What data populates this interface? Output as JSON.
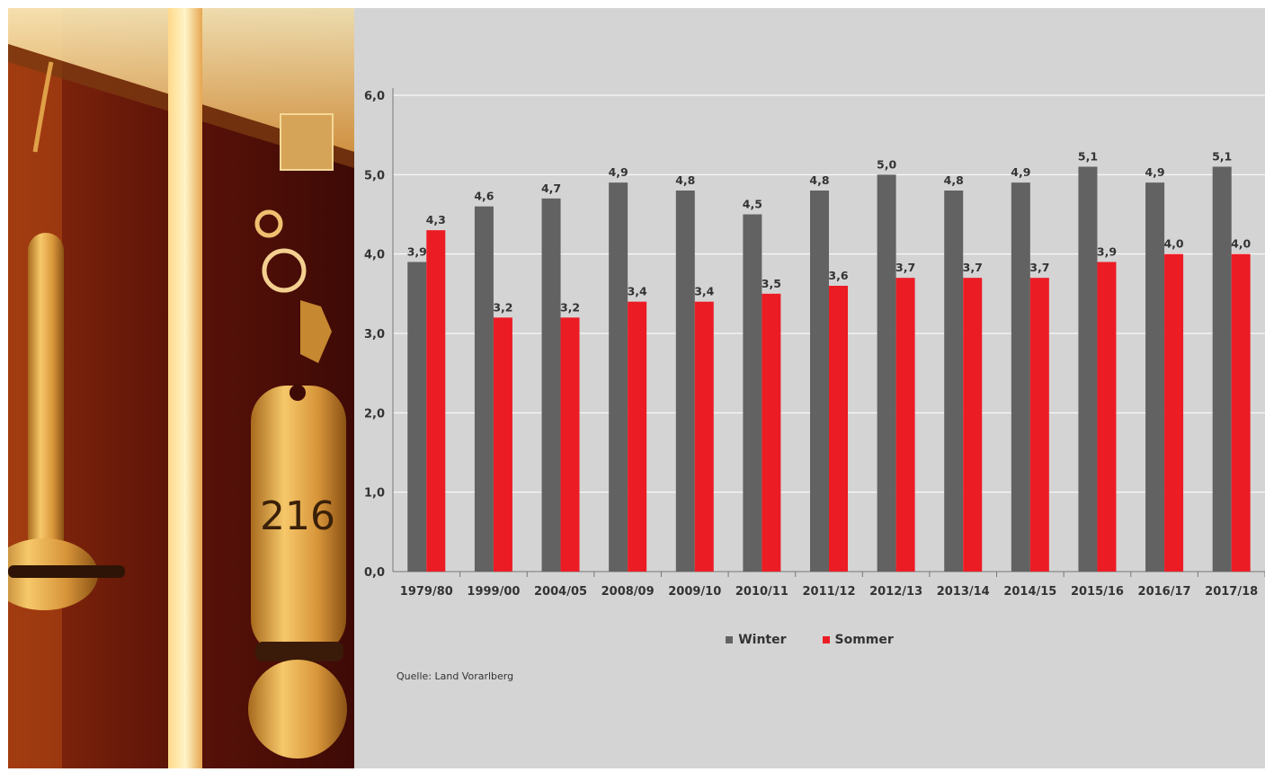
{
  "photo": {
    "key_tag_number": "216",
    "door_plate_number": "216"
  },
  "chart_data": {
    "type": "bar",
    "categories": [
      "1979/80",
      "1999/00",
      "2004/05",
      "2008/09",
      "2009/10",
      "2010/11",
      "2011/12",
      "2012/13",
      "2013/14",
      "2014/15",
      "2015/16",
      "2016/17",
      "2017/18"
    ],
    "series": [
      {
        "name": "Winter",
        "color": "#626262",
        "values": [
          3.9,
          4.6,
          4.7,
          4.9,
          4.8,
          4.5,
          4.8,
          5.0,
          4.8,
          4.9,
          5.1,
          4.9,
          5.1
        ],
        "labels": [
          "3,9",
          "4,6",
          "4,7",
          "4,9",
          "4,8",
          "4,5",
          "4,8",
          "5,0",
          "4,8",
          "4,9",
          "5,1",
          "4,9",
          "5,1"
        ]
      },
      {
        "name": "Sommer",
        "color": "#ec1c24",
        "values": [
          4.3,
          3.2,
          3.2,
          3.4,
          3.4,
          3.5,
          3.6,
          3.7,
          3.7,
          3.7,
          3.9,
          4.0,
          4.0
        ],
        "labels": [
          "4,3",
          "3,2",
          "3,2",
          "3,4",
          "3,4",
          "3,5",
          "3,6",
          "3,7",
          "3,7",
          "3,7",
          "3,9",
          "4,0",
          "4,0"
        ]
      }
    ],
    "yticks": [
      {
        "value": 0,
        "label": "0,0"
      },
      {
        "value": 1,
        "label": "1,0"
      },
      {
        "value": 2,
        "label": "2,0"
      },
      {
        "value": 3,
        "label": "3,0"
      },
      {
        "value": 4,
        "label": "4,0"
      },
      {
        "value": 5,
        "label": "5,0"
      },
      {
        "value": 6,
        "label": "6,0"
      }
    ],
    "ylim": [
      0,
      6
    ],
    "grid": true,
    "legend_position": "bottom-center",
    "source": "Quelle: Land Vorarlberg"
  }
}
